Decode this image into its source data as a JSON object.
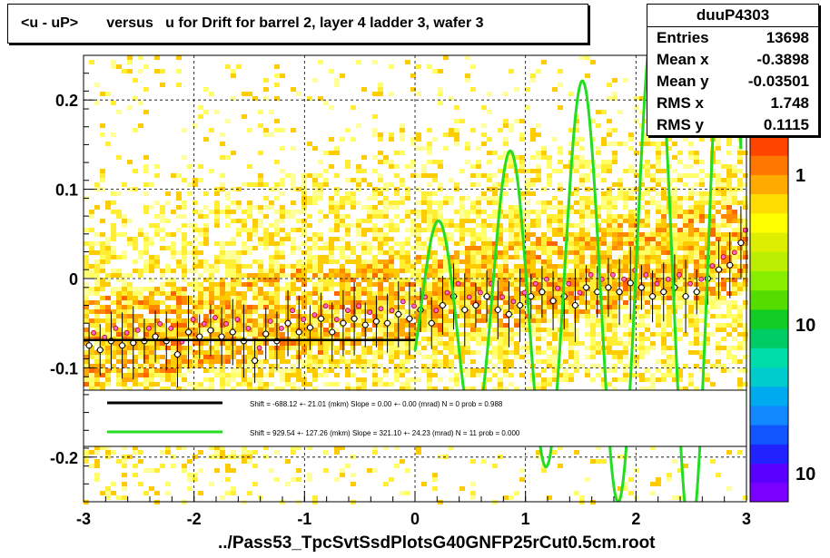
{
  "title": "<u - uP>       versus   u for Drift for barrel 2, layer 4 ladder 3, wafer 3",
  "footer": "../Pass53_TpcSvtSsdPlotsG40GNFP25rCut0.5cm.root",
  "stats": {
    "name": "duuP4303",
    "rows": [
      {
        "label": "Entries",
        "value": "13698"
      },
      {
        "label": "Mean x",
        "value": "-0.3898"
      },
      {
        "label": "Mean y",
        "value": "-0.03501"
      },
      {
        "label": "RMS x",
        "value": "1.748"
      },
      {
        "label": "RMS y",
        "value": "0.1115"
      }
    ]
  },
  "legend": {
    "black": "Shift =  -688.12 +- 21.01 (mkm) Slope =    0.00 +- 0.00 (mrad)  N = 0 prob = 0.988",
    "green": "Shift =  929.54 +- 127.26 (mkm) Slope =   321.10 +- 24.23 (mrad)  N = 11 prob = 0.000"
  },
  "colors": {
    "fit_black": "#000000",
    "fit_green": "#22dd22",
    "marker_fill": "#ff66cc",
    "gridline": "#000000"
  },
  "chart_data": {
    "type": "heatmap",
    "title": "<u - uP>       versus   u for Drift for barrel 2, layer 4 ladder 3, wafer 3",
    "xlabel": "",
    "ylabel": "",
    "xlim": [
      -3,
      3
    ],
    "ylim": [
      -0.25,
      0.25
    ],
    "x_ticks": [
      "-3",
      "-2",
      "-1",
      "0",
      "1",
      "2",
      "3"
    ],
    "y_ticks": [
      "-0.2",
      "-0.1",
      "0",
      "0.1",
      "0.2"
    ],
    "colorbar_ticks": [
      "1",
      "10",
      "10"
    ],
    "grid": true,
    "profile_points": [
      {
        "x": -2.95,
        "y": -0.075
      },
      {
        "x": -2.85,
        "y": -0.08
      },
      {
        "x": -2.75,
        "y": -0.07
      },
      {
        "x": -2.65,
        "y": -0.075
      },
      {
        "x": -2.55,
        "y": -0.072
      },
      {
        "x": -2.45,
        "y": -0.07
      },
      {
        "x": -2.35,
        "y": -0.065
      },
      {
        "x": -2.25,
        "y": -0.07
      },
      {
        "x": -2.15,
        "y": -0.085
      },
      {
        "x": -2.05,
        "y": -0.06
      },
      {
        "x": -1.95,
        "y": -0.065
      },
      {
        "x": -1.85,
        "y": -0.058
      },
      {
        "x": -1.75,
        "y": -0.065
      },
      {
        "x": -1.65,
        "y": -0.06
      },
      {
        "x": -1.55,
        "y": -0.07
      },
      {
        "x": -1.45,
        "y": -0.092
      },
      {
        "x": -1.35,
        "y": -0.062
      },
      {
        "x": -1.25,
        "y": -0.07
      },
      {
        "x": -1.15,
        "y": -0.05
      },
      {
        "x": -1.05,
        "y": -0.06
      },
      {
        "x": -0.95,
        "y": -0.055
      },
      {
        "x": -0.85,
        "y": -0.045
      },
      {
        "x": -0.75,
        "y": -0.06
      },
      {
        "x": -0.65,
        "y": -0.05
      },
      {
        "x": -0.55,
        "y": -0.045
      },
      {
        "x": -0.45,
        "y": -0.052
      },
      {
        "x": -0.35,
        "y": -0.048
      },
      {
        "x": -0.25,
        "y": -0.05
      },
      {
        "x": -0.15,
        "y": -0.04
      },
      {
        "x": -0.05,
        "y": -0.045
      },
      {
        "x": 0.05,
        "y": -0.035
      },
      {
        "x": 0.15,
        "y": -0.05
      },
      {
        "x": 0.25,
        "y": -0.03
      },
      {
        "x": 0.35,
        "y": -0.02
      },
      {
        "x": 0.45,
        "y": -0.035
      },
      {
        "x": 0.55,
        "y": -0.03
      },
      {
        "x": 0.65,
        "y": -0.02
      },
      {
        "x": 0.75,
        "y": -0.035
      },
      {
        "x": 0.85,
        "y": -0.04
      },
      {
        "x": 0.95,
        "y": -0.03
      },
      {
        "x": 1.05,
        "y": -0.02
      },
      {
        "x": 1.15,
        "y": -0.015
      },
      {
        "x": 1.25,
        "y": -0.025
      },
      {
        "x": 1.35,
        "y": -0.02
      },
      {
        "x": 1.45,
        "y": -0.03
      },
      {
        "x": 1.55,
        "y": -0.01
      },
      {
        "x": 1.65,
        "y": -0.015
      },
      {
        "x": 1.75,
        "y": -0.01
      },
      {
        "x": 1.85,
        "y": -0.015
      },
      {
        "x": 1.95,
        "y": -0.005
      },
      {
        "x": 2.05,
        "y": -0.01
      },
      {
        "x": 2.15,
        "y": -0.02
      },
      {
        "x": 2.25,
        "y": -0.015
      },
      {
        "x": 2.35,
        "y": -0.01
      },
      {
        "x": 2.45,
        "y": -0.02
      },
      {
        "x": 2.55,
        "y": -0.015
      },
      {
        "x": 2.65,
        "y": 0.0
      },
      {
        "x": 2.75,
        "y": 0.01
      },
      {
        "x": 2.85,
        "y": 0.015
      },
      {
        "x": 2.95,
        "y": 0.04
      }
    ],
    "fits": [
      {
        "name": "black",
        "x_range": [
          -3,
          0
        ],
        "y": -0.0688
      },
      {
        "name": "green",
        "x_range": [
          0,
          2.95
        ]
      }
    ]
  }
}
